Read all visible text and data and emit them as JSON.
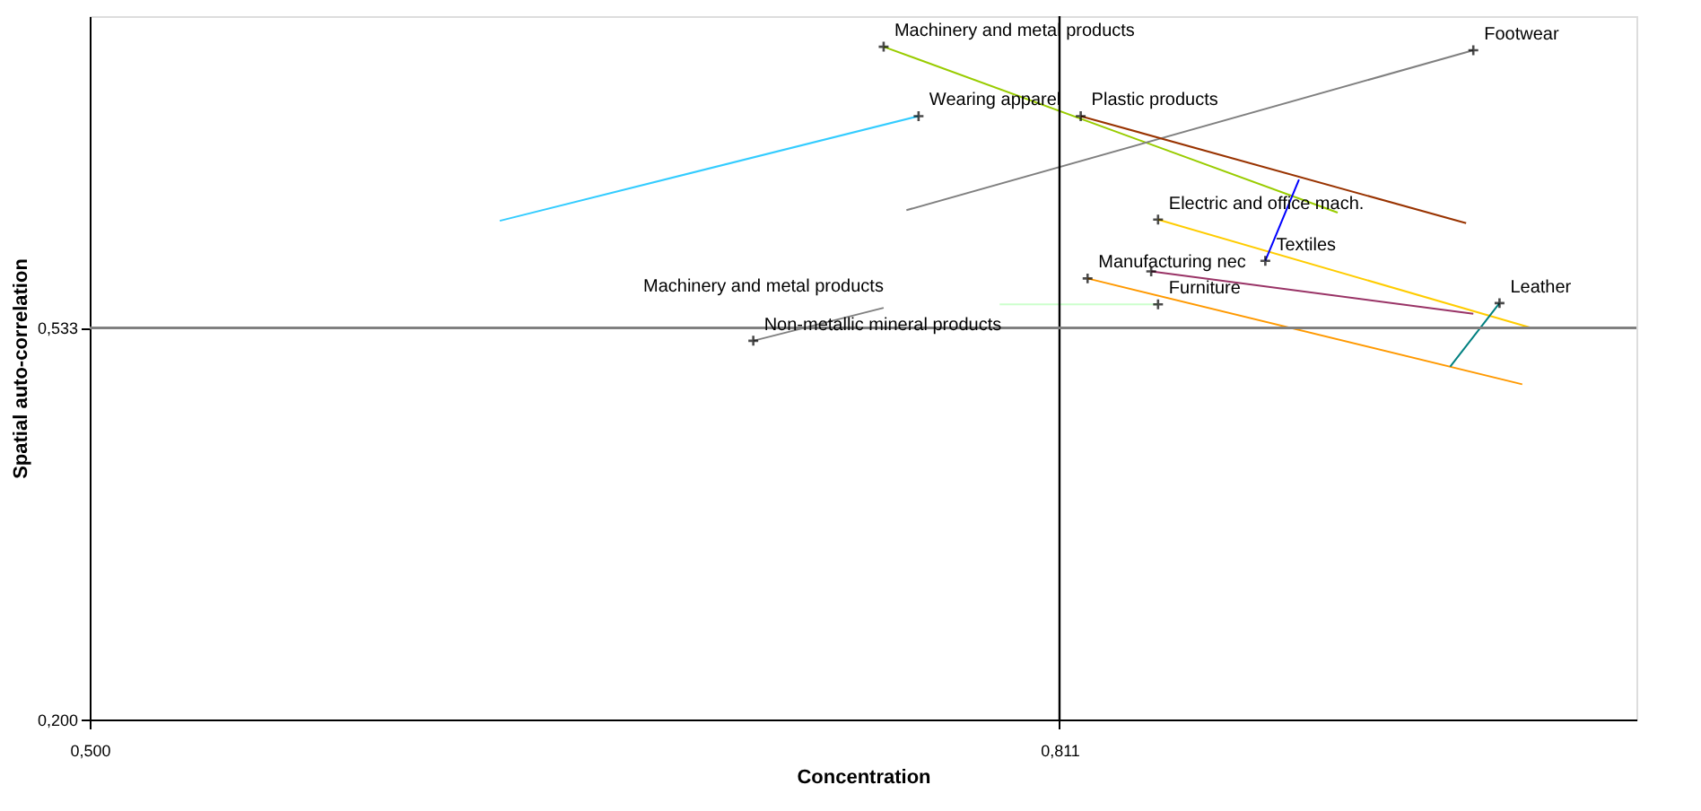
{
  "chart_data": {
    "type": "line",
    "xlabel": "Concentration",
    "ylabel": "Spatial auto-correlation",
    "xlim": [
      0.5,
      0.996
    ],
    "ylim": [
      0.2,
      0.798
    ],
    "xticks": [
      {
        "value": 0.5,
        "label": "0,500"
      },
      {
        "value": 0.811,
        "label": "0,811"
      }
    ],
    "yticks": [
      {
        "value": 0.2,
        "label": "0,200"
      },
      {
        "value": 0.533,
        "label": "0,533"
      }
    ],
    "grid": false,
    "marker": "cross",
    "line_style": "solid",
    "ref_lines": [
      {
        "axis": "x",
        "value": 0.811,
        "color": "#000000"
      },
      {
        "axis": "y",
        "value": 0.533,
        "color": "#808080"
      }
    ],
    "annotations": [
      {
        "text": "Machinery and metal products",
        "x": 0.7546,
        "y": 0.55
      }
    ],
    "series": [
      {
        "name": "Machinery and metal products",
        "color": "#99cc00",
        "x": [
          0.9002,
          0.7546
        ],
        "values": [
          0.631,
          0.772
        ]
      },
      {
        "name": "Wearing apparel",
        "color": "#33ccff",
        "x": [
          0.6315,
          0.7658
        ],
        "values": [
          0.624,
          0.713
        ]
      },
      {
        "name": "Footwear",
        "color": "#808080",
        "x": [
          0.7619,
          0.9437
        ],
        "values": [
          0.633,
          0.769
        ]
      },
      {
        "name": "Plastic products",
        "color": "#993300",
        "x": [
          0.9414,
          0.8178
        ],
        "values": [
          0.622,
          0.713
        ]
      },
      {
        "name": "Electric and office mach.",
        "color": "#ffcc00",
        "x": [
          0.9623,
          0.8426
        ],
        "values": [
          0.533,
          0.625
        ]
      },
      {
        "name": "Textiles",
        "color": "#0000ff",
        "x": [
          0.8878,
          0.877
        ],
        "values": [
          0.659,
          0.59
        ]
      },
      {
        "color": "#993366",
        "x": [
          0.9437,
          0.8404
        ],
        "values": [
          0.545,
          0.581
        ]
      },
      {
        "name": "Manufacturing nec",
        "color": "#ff9900",
        "x": [
          0.9594,
          0.82
        ],
        "values": [
          0.485,
          0.575
        ]
      },
      {
        "name": "Furniture",
        "color": "#ccffcc",
        "x": [
          0.7918,
          0.8426
        ],
        "values": [
          0.553,
          0.553
        ]
      },
      {
        "name": "Leather",
        "color": "#008080",
        "x": [
          0.9363,
          0.9521
        ],
        "values": [
          0.5,
          0.554
        ]
      },
      {
        "name": "Non-metallic mineral products",
        "color": "#808080",
        "x": [
          0.7546,
          0.7128
        ],
        "values": [
          0.55,
          0.522
        ]
      }
    ]
  }
}
